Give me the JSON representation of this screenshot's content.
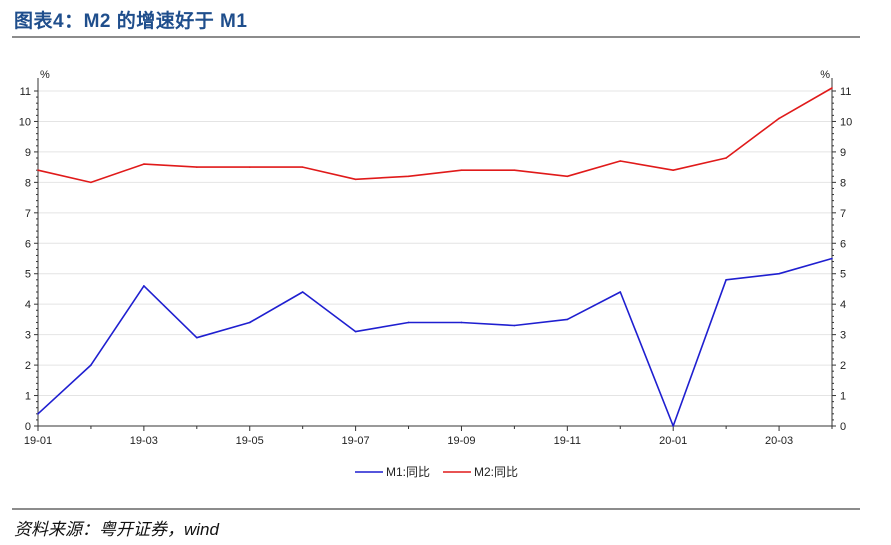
{
  "header": {
    "title": "图表4：M2 的增速好于 M1"
  },
  "footer": {
    "source": "资料来源：粤开证券，wind"
  },
  "chart_data": {
    "type": "line",
    "categories": [
      "19-01",
      "19-02",
      "19-03",
      "19-04",
      "19-05",
      "19-06",
      "19-07",
      "19-08",
      "19-09",
      "19-10",
      "19-11",
      "19-12",
      "20-01",
      "20-02",
      "20-03",
      "20-04"
    ],
    "x_tick_labels": [
      "19-01",
      "19-03",
      "19-05",
      "19-07",
      "19-09",
      "19-11",
      "20-01",
      "20-03"
    ],
    "y_ticks": [
      0,
      1,
      2,
      3,
      4,
      5,
      6,
      7,
      8,
      9,
      10,
      11
    ],
    "ylim": [
      0,
      11
    ],
    "y_unit_left": "%",
    "y_unit_right": "%",
    "grid": true,
    "legend_position": "bottom",
    "series": [
      {
        "name": "M1:同比",
        "color": "#1f1fd0",
        "values": [
          0.4,
          2.0,
          4.6,
          2.9,
          3.4,
          4.4,
          3.1,
          3.4,
          3.4,
          3.3,
          3.5,
          4.4,
          0.0,
          4.8,
          5.0,
          5.5
        ]
      },
      {
        "name": "M2:同比",
        "color": "#e01a1a",
        "values": [
          8.4,
          8.0,
          8.6,
          8.5,
          8.5,
          8.5,
          8.1,
          8.2,
          8.4,
          8.4,
          8.2,
          8.7,
          8.4,
          8.8,
          10.1,
          11.1
        ]
      }
    ]
  }
}
